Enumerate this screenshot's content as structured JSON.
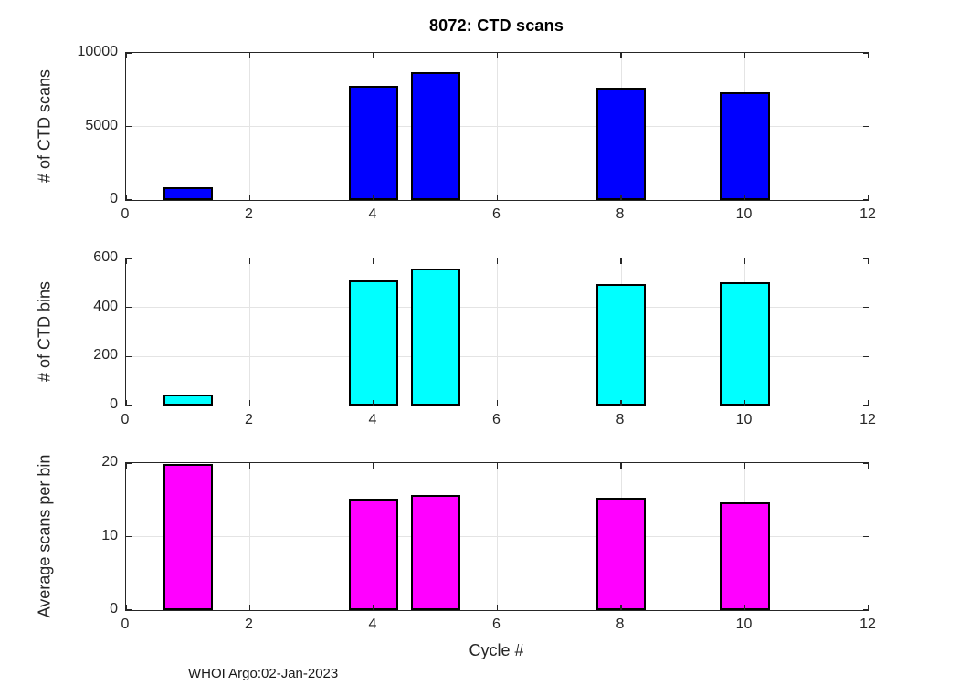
{
  "figure": {
    "title": "8072: CTD scans",
    "xlabel": "Cycle #",
    "footer": "WHOI Argo:02-Jan-2023",
    "background": "#ffffff"
  },
  "colors": {
    "bar_blue": "#0000ff",
    "bar_cyan": "#00ffff",
    "bar_magenta": "#ff00ff",
    "bar_edge": "#000000",
    "axis": "#262626",
    "grid": "#e4e4e4",
    "title_text": "#000000",
    "label_text": "#262626"
  },
  "chart_data": [
    {
      "type": "bar",
      "title": "8072: CTD scans",
      "ylabel": "# of CTD scans",
      "xlabel": "",
      "x": [
        1,
        4,
        5,
        8,
        10
      ],
      "values": [
        870,
        7760,
        8700,
        7660,
        7350
      ],
      "bar_color": "#0000ff",
      "bar_width": 0.8,
      "xlim": [
        0,
        12
      ],
      "ylim": [
        0,
        10000
      ],
      "xticks": [
        0,
        2,
        4,
        6,
        8,
        10,
        12
      ],
      "yticks": [
        0,
        5000,
        10000
      ],
      "grid": true,
      "legend": null
    },
    {
      "type": "bar",
      "title": "",
      "ylabel": "# of CTD bins",
      "xlabel": "",
      "x": [
        1,
        4,
        5,
        8,
        10
      ],
      "values": [
        44,
        512,
        560,
        497,
        504
      ],
      "bar_color": "#00ffff",
      "bar_width": 0.8,
      "xlim": [
        0,
        12
      ],
      "ylim": [
        0,
        600
      ],
      "xticks": [
        0,
        2,
        4,
        6,
        8,
        10,
        12
      ],
      "yticks": [
        0,
        200,
        400,
        600
      ],
      "grid": true,
      "legend": null
    },
    {
      "type": "bar",
      "title": "",
      "ylabel": "Average scans per bin",
      "xlabel": "Cycle #",
      "x": [
        1,
        4,
        5,
        8,
        10
      ],
      "values": [
        19.9,
        15.2,
        15.6,
        15.3,
        14.7
      ],
      "bar_color": "#ff00ff",
      "bar_width": 0.8,
      "xlim": [
        0,
        12
      ],
      "ylim": [
        0,
        20
      ],
      "xticks": [
        0,
        2,
        4,
        6,
        8,
        10,
        12
      ],
      "yticks": [
        0,
        10,
        20
      ],
      "grid": true,
      "legend": null
    }
  ]
}
